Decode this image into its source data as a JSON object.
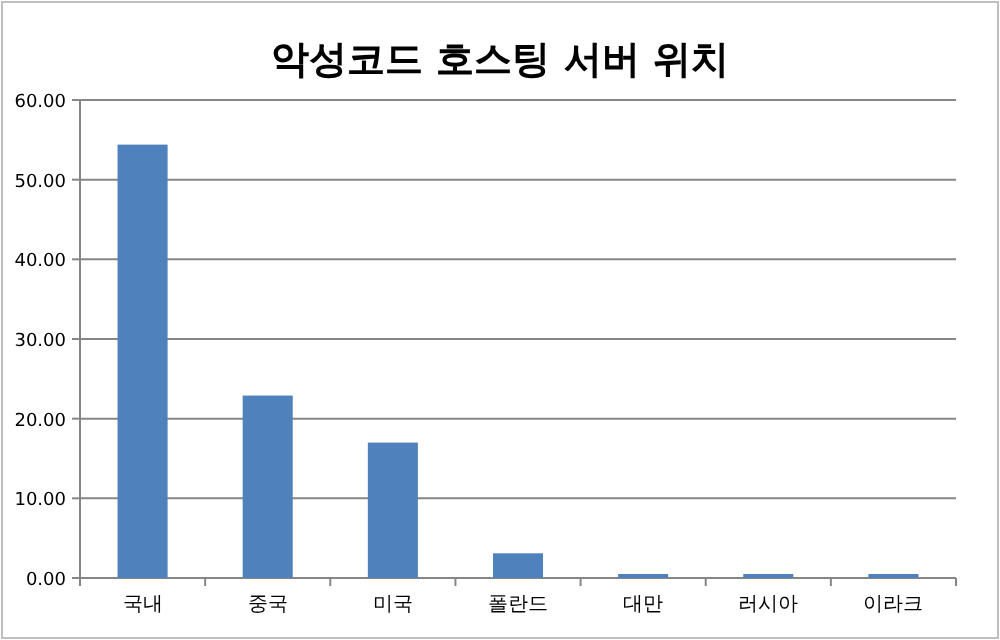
{
  "chart_data": {
    "type": "bar",
    "title": "악성코드 호스팅 서버 위치",
    "categories": [
      "국내",
      "중국",
      "미국",
      "폴란드",
      "대만",
      "러시아",
      "이라크"
    ],
    "values": [
      54.4,
      22.9,
      17.0,
      3.1,
      0.5,
      0.5,
      0.5
    ],
    "color": "#4f81bd",
    "ylim": [
      0,
      60
    ],
    "yticks": [
      {
        "value": 0,
        "label": "0.00"
      },
      {
        "value": 10,
        "label": "10.00"
      },
      {
        "value": 20,
        "label": "20.00"
      },
      {
        "value": 30,
        "label": "30.00"
      },
      {
        "value": 40,
        "label": "40.00"
      },
      {
        "value": 50,
        "label": "50.00"
      },
      {
        "value": 60,
        "label": "60.00"
      }
    ],
    "grid": "y",
    "legend": false
  }
}
